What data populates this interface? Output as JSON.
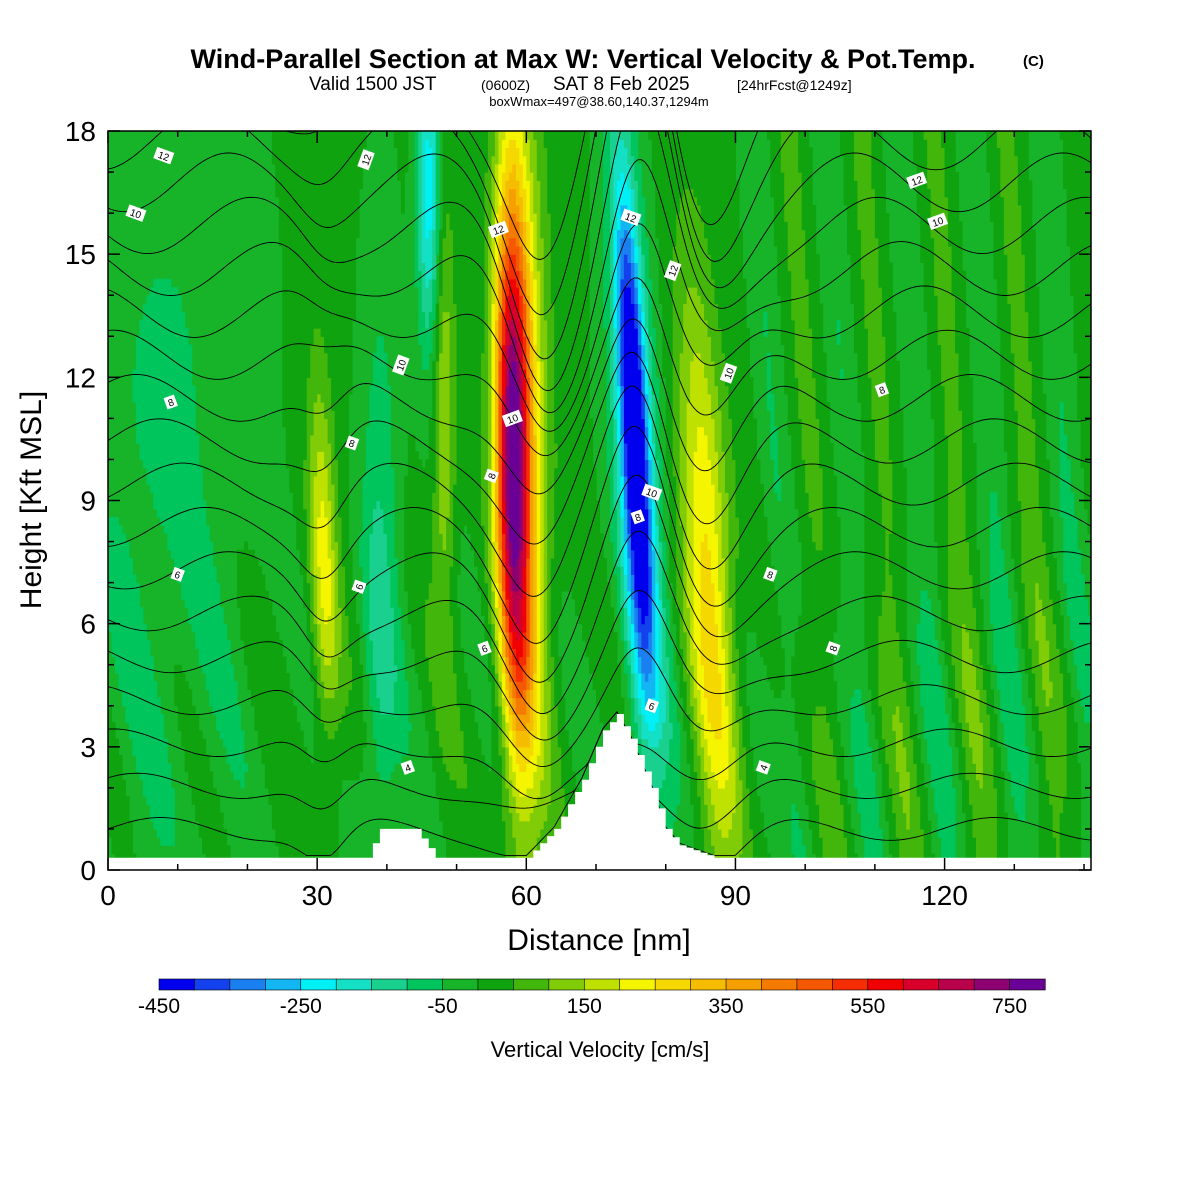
{
  "header": {
    "title": "Wind-Parallel Section at Max W: Vertical Velocity & Pot.Temp.",
    "title_mark": "(C)",
    "valid_prefix": "Valid 1500 JST",
    "valid_utc": "(0600Z)",
    "valid_date": "SAT 8 Feb 2025",
    "forecast": "[24hrFcst@1249z]",
    "boxinfo": "boxWmax=497@38.60,140.37,1294m"
  },
  "chart_data": {
    "type": "heatmap",
    "title": "Wind-Parallel Section at Max W: Vertical Velocity & Pot.Temp.",
    "xlabel": "Distance [nm]",
    "ylabel": "Height [Kft MSL]",
    "xlim": [
      0,
      141
    ],
    "ylim": [
      0,
      18
    ],
    "x_ticks": [
      "0",
      "30",
      "60",
      "90",
      "120"
    ],
    "y_ticks": [
      "0",
      "3",
      "6",
      "9",
      "12",
      "15",
      "18"
    ],
    "colorbar": {
      "label": "Vertical Velocity [cm/s]",
      "tick_labels": [
        "-450",
        "-250",
        "-50",
        "150",
        "350",
        "550",
        "750"
      ],
      "levels": [
        -450,
        -400,
        -350,
        -300,
        -250,
        -200,
        -150,
        -100,
        -50,
        0,
        50,
        100,
        150,
        200,
        250,
        300,
        350,
        400,
        450,
        500,
        550,
        600,
        650,
        700,
        750,
        800
      ],
      "colors": [
        "#0000ee",
        "#1441ee",
        "#1a7ff0",
        "#13b6f2",
        "#00f0f5",
        "#13e0c4",
        "#1ad08f",
        "#00c45c",
        "#17b42a",
        "#0fa30f",
        "#43b60b",
        "#80cc06",
        "#bfe100",
        "#f5f500",
        "#f5d800",
        "#f5bc00",
        "#f59f00",
        "#f57a00",
        "#f55800",
        "#f52d00",
        "#f00000",
        "#d8002a",
        "#b8004b",
        "#8d0072",
        "#6a0096"
      ]
    },
    "updraft_cores": [
      {
        "x": 58,
        "value": 650
      },
      {
        "x": 87,
        "value": 250
      },
      {
        "x": 31,
        "value": 200
      },
      {
        "x": 47,
        "value": 150
      }
    ],
    "downdraft_cores": [
      {
        "x": 76,
        "value": -400
      },
      {
        "x": 47,
        "value": -250
      }
    ],
    "terrain": [
      {
        "x": 0,
        "h": 0.3
      },
      {
        "x": 37,
        "h": 0.3
      },
      {
        "x": 39,
        "h": 1.0
      },
      {
        "x": 44,
        "h": 1.0
      },
      {
        "x": 47,
        "h": 0.3
      },
      {
        "x": 60,
        "h": 0.3
      },
      {
        "x": 64,
        "h": 1.0
      },
      {
        "x": 68,
        "h": 2.2
      },
      {
        "x": 71,
        "h": 3.4
      },
      {
        "x": 73,
        "h": 3.8
      },
      {
        "x": 75,
        "h": 3.2
      },
      {
        "x": 78,
        "h": 2.0
      },
      {
        "x": 80,
        "h": 1.0
      },
      {
        "x": 82,
        "h": 0.6
      },
      {
        "x": 87,
        "h": 0.3
      },
      {
        "x": 141,
        "h": 0.3
      }
    ],
    "theta_contours": [
      {
        "label": "4",
        "base": 2.6,
        "label_pos": [
          43,
          2.5
        ]
      },
      {
        "label": "6",
        "base": 7.4,
        "label_pos": [
          10,
          7.2
        ]
      },
      {
        "label": "6",
        "base": 7.0,
        "label_pos": [
          36,
          6.9
        ]
      },
      {
        "label": "6",
        "base": 5.8,
        "label_pos": [
          54,
          5.4
        ]
      },
      {
        "label": "6",
        "base": 4.2,
        "label_pos": [
          78,
          4.0
        ]
      },
      {
        "label": "4",
        "base": 2.6,
        "label_pos": [
          94,
          2.5
        ]
      },
      {
        "label": "8",
        "base": 11.5,
        "label_pos": [
          9,
          11.4
        ]
      },
      {
        "label": "8",
        "base": 10.6,
        "label_pos": [
          35,
          10.4
        ]
      },
      {
        "label": "8",
        "base": 9.6,
        "label_pos": [
          55,
          9.6
        ]
      },
      {
        "label": "8",
        "base": 8.6,
        "label_pos": [
          76,
          8.6
        ]
      },
      {
        "label": "8",
        "base": 7.2,
        "label_pos": [
          95,
          7.2
        ]
      },
      {
        "label": "8",
        "base": 5.6,
        "label_pos": [
          104,
          5.4
        ]
      },
      {
        "label": "8",
        "base": 11.7,
        "label_pos": [
          111,
          11.7
        ]
      },
      {
        "label": "10",
        "base": 16.0,
        "label_pos": [
          4,
          16.0
        ]
      },
      {
        "label": "10",
        "base": 12.4,
        "label_pos": [
          42,
          12.3
        ]
      },
      {
        "label": "10",
        "base": 11.0,
        "label_pos": [
          58,
          11.0
        ]
      },
      {
        "label": "10",
        "base": 9.2,
        "label_pos": [
          78,
          9.2
        ]
      },
      {
        "label": "10",
        "base": 12.1,
        "label_pos": [
          89,
          12.1
        ]
      },
      {
        "label": "10",
        "base": 15.8,
        "label_pos": [
          119,
          15.8
        ]
      },
      {
        "label": "12",
        "base": 17.5,
        "label_pos": [
          8,
          17.4
        ]
      },
      {
        "label": "12",
        "base": 17.4,
        "label_pos": [
          37,
          17.3
        ]
      },
      {
        "label": "12",
        "base": 15.6,
        "label_pos": [
          56,
          15.6
        ]
      },
      {
        "label": "12",
        "base": 15.9,
        "label_pos": [
          75,
          15.9
        ]
      },
      {
        "label": "12",
        "base": 14.6,
        "label_pos": [
          81,
          14.6
        ]
      },
      {
        "label": "12",
        "base": 16.8,
        "label_pos": [
          116,
          16.8
        ]
      }
    ]
  }
}
